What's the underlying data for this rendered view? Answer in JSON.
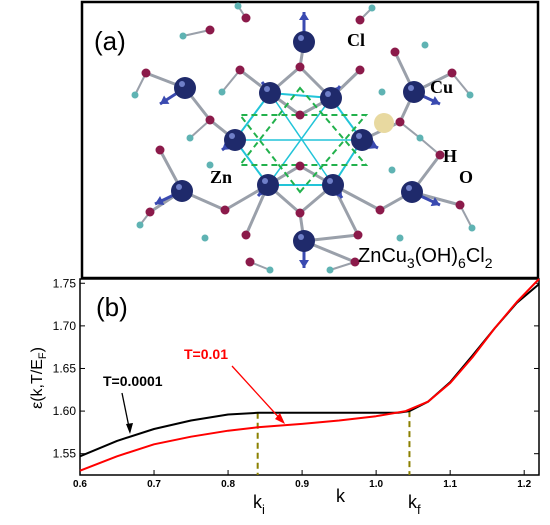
{
  "panel_a": {
    "label": "(a)",
    "formula_parts": [
      "ZnCu",
      "3",
      "(OH)",
      "6",
      "Cl",
      "2"
    ],
    "atom_labels": {
      "cl": "Cl",
      "cu": "Cu",
      "zn": "Zn",
      "h": "H",
      "o": "O"
    },
    "colors": {
      "cu_atom": "#1f2a6b",
      "o_atom": "#8b1a4a",
      "h_atom": "#5fb3b3",
      "zn_atom": "#e8d9a0",
      "bond": "#9aa0aa",
      "hexagon": "#22c4d8",
      "triangle": "#22b14c",
      "arrow": "#3a4ab0"
    }
  },
  "panel_b": {
    "label": "(b)",
    "x_tick_labels": [
      "0.6",
      "0.7",
      "0.8",
      "0.9",
      "1.0",
      "1.1",
      "1.2"
    ],
    "y_tick_labels": [
      "1.55",
      "1.60",
      "1.65",
      "1.70",
      "1.75"
    ],
    "k_i": "k",
    "k_i_sub": "i",
    "k_f": "k",
    "k_f_sub": "f",
    "k_axis": "k",
    "ylabel_parts": [
      "ε(k,T/E",
      "F",
      ")"
    ],
    "annotation_black": "T=0.0001",
    "annotation_red": "T=0.01"
  },
  "chart_data": {
    "type": "line",
    "xlim": [
      0.6,
      1.22
    ],
    "ylim": [
      1.525,
      1.755
    ],
    "x_ticks": [
      0.6,
      0.7,
      0.8,
      0.9,
      1.0,
      1.1,
      1.2
    ],
    "y_ticks": [
      1.55,
      1.6,
      1.65,
      1.7,
      1.75
    ],
    "grid": false,
    "series": [
      {
        "name": "T=0.0001",
        "color": "#000000",
        "x": [
          0.6,
          0.65,
          0.7,
          0.75,
          0.8,
          0.84,
          0.9,
          0.95,
          1.0,
          1.03,
          1.045,
          1.07,
          1.1,
          1.13,
          1.16,
          1.19,
          1.22
        ],
        "y": [
          1.547,
          1.565,
          1.579,
          1.589,
          1.596,
          1.598,
          1.598,
          1.598,
          1.598,
          1.598,
          1.6,
          1.611,
          1.634,
          1.665,
          1.697,
          1.727,
          1.749
        ]
      },
      {
        "name": "T=0.01",
        "color": "#ff0000",
        "x": [
          0.6,
          0.65,
          0.7,
          0.75,
          0.8,
          0.84,
          0.9,
          0.95,
          1.0,
          1.04,
          1.07,
          1.1,
          1.13,
          1.16,
          1.19,
          1.22
        ],
        "y": [
          1.53,
          1.547,
          1.561,
          1.57,
          1.577,
          1.581,
          1.585,
          1.589,
          1.594,
          1.6,
          1.611,
          1.633,
          1.663,
          1.697,
          1.728,
          1.755
        ]
      }
    ],
    "vlines": [
      {
        "x": 0.84,
        "y_top": 1.598,
        "color": "#8b8000"
      },
      {
        "x": 1.045,
        "y_top": 1.6,
        "color": "#8b8000"
      }
    ]
  }
}
